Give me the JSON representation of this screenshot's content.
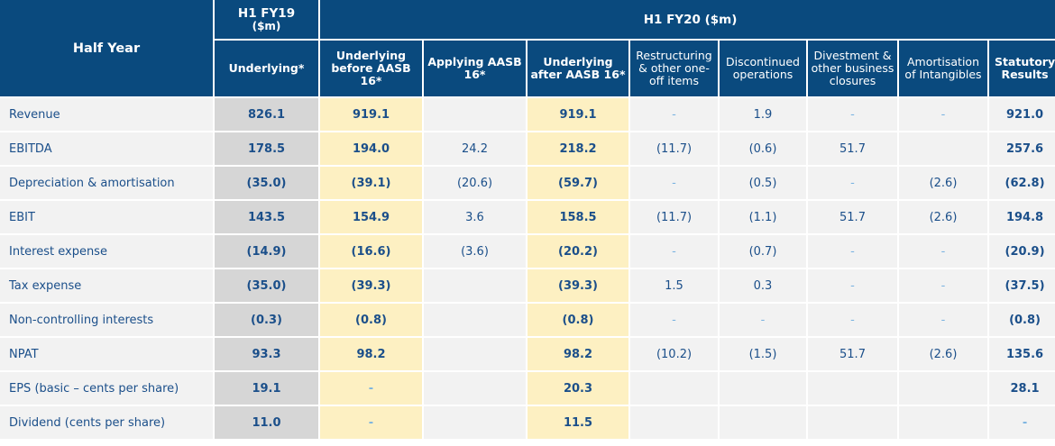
{
  "header": {
    "half_year": "Half Year",
    "fy19": "H1 FY19",
    "fy19_unit": "($m)",
    "fy20": "H1 FY20 ($m)",
    "columns": [
      "Underlying*",
      "Underlying before AASB 16*",
      "Applying AASB 16*",
      "Underlying after AASB 16*",
      "Restructuring & other one-off items",
      "Discontinued operations",
      "Divestment & other business closures",
      "Amortisation of Intangibles",
      "Statutory Results"
    ]
  },
  "rows": [
    {
      "label": "Revenue",
      "cells": [
        "826.1",
        "919.1",
        "",
        "919.1",
        "-",
        "1.9",
        "-",
        "-",
        "921.0"
      ]
    },
    {
      "label": "EBITDA",
      "cells": [
        "178.5",
        "194.0",
        "24.2",
        "218.2",
        "(11.7)",
        "(0.6)",
        "51.7",
        "",
        "257.6"
      ]
    },
    {
      "label": "Depreciation & amortisation",
      "cells": [
        "(35.0)",
        "(39.1)",
        "(20.6)",
        "(59.7)",
        "-",
        "(0.5)",
        "-",
        "(2.6)",
        "(62.8)"
      ]
    },
    {
      "label": "EBIT",
      "cells": [
        "143.5",
        "154.9",
        "3.6",
        "158.5",
        "(11.7)",
        "(1.1)",
        "51.7",
        "(2.6)",
        "194.8"
      ]
    },
    {
      "label": "Interest expense",
      "cells": [
        "(14.9)",
        "(16.6)",
        "(3.6)",
        "(20.2)",
        "-",
        "(0.7)",
        "-",
        "-",
        "(20.9)"
      ]
    },
    {
      "label": "Tax expense",
      "cells": [
        "(35.0)",
        "(39.3)",
        "",
        "(39.3)",
        "1.5",
        "0.3",
        "-",
        "-",
        "(37.5)"
      ]
    },
    {
      "label": "Non-controlling interests",
      "cells": [
        "(0.3)",
        "(0.8)",
        "",
        "(0.8)",
        "-",
        "-",
        "-",
        "-",
        "(0.8)"
      ]
    },
    {
      "label": "NPAT",
      "cells": [
        "93.3",
        "98.2",
        "",
        "98.2",
        "(10.2)",
        "(1.5)",
        "51.7",
        "(2.6)",
        "135.6"
      ]
    },
    {
      "label": "EPS (basic – cents per share)",
      "cells": [
        "19.1",
        "-",
        "",
        "20.3",
        "",
        "",
        "",
        "",
        "28.1"
      ]
    },
    {
      "label": "Dividend (cents per share)",
      "cells": [
        "11.0",
        "-",
        "",
        "11.5",
        "",
        "",
        "",
        "",
        "-"
      ]
    }
  ],
  "colors": {
    "header_bg": "#0a4a7e",
    "label_text": "#1b4f8a",
    "fy19_column_bg": "#d6d6d6",
    "underlying_columns_bg": "#fdf0c2",
    "cell_bg": "#f2f2f2"
  }
}
